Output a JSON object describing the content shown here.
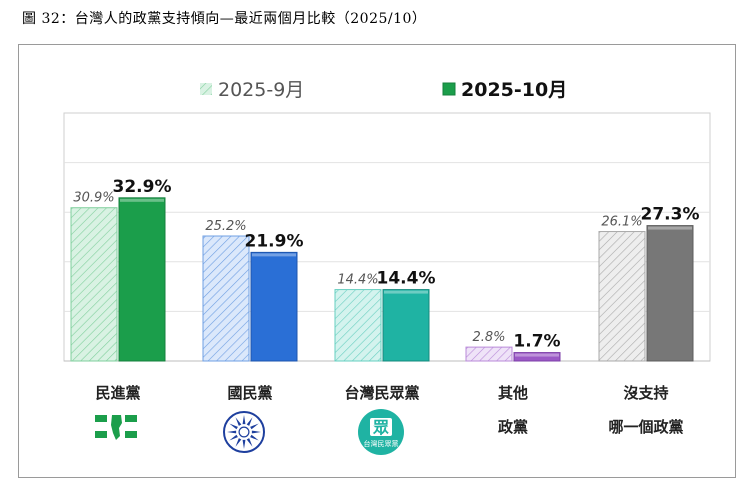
{
  "figure_title": "圖 32：台灣人的政黨支持傾向—最近兩個月比較（2025/10）",
  "chart_data": {
    "type": "bar",
    "title": "台灣人的政黨支持傾向—最近兩個月比較（2025/10）",
    "ylim": [
      0,
      50
    ],
    "grid": true,
    "legend_position": "top-center",
    "categories": [
      "民進黨",
      "國民黨",
      "台灣民眾黨",
      "其他政黨",
      "沒支持哪一個政黨"
    ],
    "category_lines": [
      [
        "民進黨"
      ],
      [
        "國民黨"
      ],
      [
        "台灣民眾黨"
      ],
      [
        "其他",
        "政黨"
      ],
      [
        "沒支持",
        "哪一個政黨"
      ]
    ],
    "series": [
      {
        "name": "2025-9月",
        "values": [
          30.9,
          25.2,
          14.4,
          2.8,
          26.1
        ],
        "labels": [
          "30.9%",
          "25.2%",
          "14.4%",
          "2.8%",
          "26.1%"
        ]
      },
      {
        "name": "2025-10月",
        "values": [
          32.9,
          21.9,
          14.4,
          1.7,
          27.3
        ],
        "labels": [
          "32.9%",
          "21.9%",
          "14.4%",
          "1.7%",
          "27.3%"
        ]
      }
    ],
    "colors": {
      "dpp": {
        "light": "#d9f2e3",
        "hatch": "#7fcf9c",
        "dark": "#1b9e4b",
        "edge": "#15803d"
      },
      "kmt": {
        "light": "#dbe8fb",
        "hatch": "#6f9fe3",
        "dark": "#2a6fd6",
        "edge": "#1e55ad"
      },
      "tpp": {
        "light": "#d4f3ee",
        "hatch": "#66cfc0",
        "dark": "#1fb3a3",
        "edge": "#168a7e"
      },
      "other": {
        "light": "#efe3f8",
        "hatch": "#b98ad9",
        "dark": "#9b59c6",
        "edge": "#7d3fa8"
      },
      "none": {
        "light": "#eeeeee",
        "hatch": "#a8a8a8",
        "dark": "#777777",
        "edge": "#5c5c5c"
      }
    }
  },
  "party_icons": [
    {
      "name": "dpp-logo-icon",
      "color": "#1b9e4b"
    },
    {
      "name": "kmt-logo-icon",
      "color": "#1e3f9e"
    },
    {
      "name": "tpp-logo-icon",
      "color": "#1fb3a3",
      "text_top": "眾",
      "text_bottom": "台灣民眾黨"
    }
  ]
}
